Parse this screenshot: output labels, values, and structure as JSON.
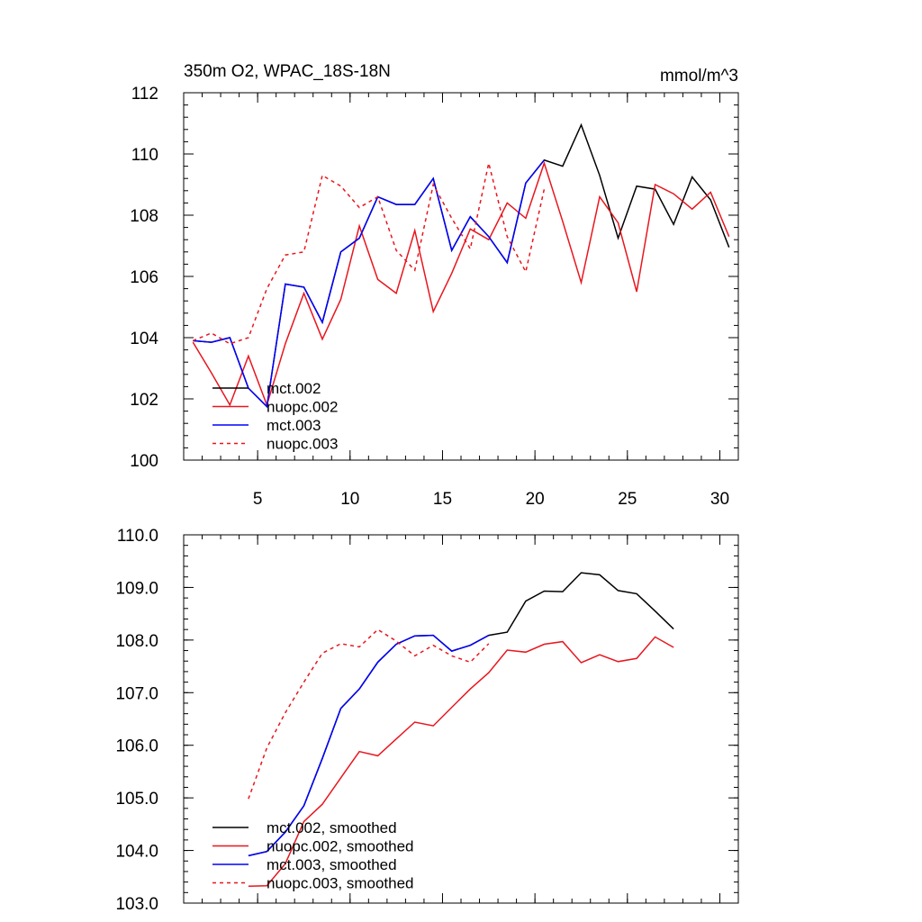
{
  "chart_data": [
    {
      "type": "line",
      "title": "350m O2, WPAC_18S-18N",
      "units": "mmol/m^3",
      "xlim": [
        1,
        31
      ],
      "ylim": [
        100,
        112
      ],
      "xticks": [
        5,
        10,
        15,
        20,
        25,
        30
      ],
      "yticks": [
        100,
        102,
        104,
        106,
        108,
        110,
        112
      ],
      "ytick_labels": [
        "100",
        "102",
        "104",
        "106",
        "108",
        "110",
        "112"
      ],
      "legend_placement": "bottom-left",
      "series": [
        {
          "name": "mct.002",
          "color": "#000000",
          "dash": "solid",
          "x": [
            1.5,
            2.5,
            3.5,
            4.5,
            5.5,
            6.5,
            7.5,
            8.5,
            9.5,
            10.5,
            11.5,
            12.5,
            13.5,
            14.5,
            15.5,
            16.5,
            17.5,
            18.5,
            19.5,
            20.5,
            21.5,
            22.5,
            23.5,
            24.5,
            25.5,
            26.5,
            27.5,
            28.5,
            29.5,
            30.5
          ],
          "y": [
            103.9,
            103.85,
            104.0,
            102.35,
            101.75,
            105.75,
            105.65,
            104.5,
            106.8,
            107.25,
            108.6,
            108.35,
            108.35,
            109.2,
            106.85,
            107.95,
            107.3,
            106.45,
            109.05,
            109.8,
            109.6,
            110.95,
            109.3,
            107.25,
            108.95,
            108.85,
            107.7,
            109.25,
            108.5,
            106.95
          ]
        },
        {
          "name": "nuopc.002",
          "color": "#e8161e",
          "dash": "solid",
          "x": [
            1.5,
            2.5,
            3.5,
            4.5,
            5.5,
            6.5,
            7.5,
            8.5,
            9.5,
            10.5,
            11.5,
            12.5,
            13.5,
            14.5,
            15.5,
            16.5,
            17.5,
            18.5,
            19.5,
            20.5,
            21.5,
            22.5,
            23.5,
            24.5,
            25.5,
            26.5,
            27.5,
            28.5,
            29.5,
            30.5
          ],
          "y": [
            103.85,
            102.85,
            101.8,
            103.4,
            101.8,
            103.8,
            105.45,
            103.95,
            105.25,
            107.65,
            105.9,
            105.45,
            107.5,
            104.85,
            106.1,
            107.55,
            107.2,
            108.4,
            107.9,
            109.7,
            107.8,
            105.8,
            108.6,
            107.75,
            105.5,
            109.0,
            108.7,
            108.2,
            108.75,
            107.3
          ]
        },
        {
          "name": "mct.003",
          "color": "#0000ff",
          "dash": "solid",
          "x": [
            1.5,
            2.5,
            3.5,
            4.5,
            5.5,
            6.5,
            7.5,
            8.5,
            9.5,
            10.5,
            11.5,
            12.5,
            13.5,
            14.5,
            15.5,
            16.5,
            17.5,
            18.5,
            19.5,
            20.5
          ],
          "y": [
            103.9,
            103.85,
            104.0,
            102.35,
            101.75,
            105.75,
            105.65,
            104.5,
            106.8,
            107.25,
            108.6,
            108.35,
            108.35,
            109.2,
            106.85,
            107.95,
            107.3,
            106.45,
            109.05,
            109.8
          ]
        },
        {
          "name": "nuopc.003",
          "color": "#e8161e",
          "dash": "dashed",
          "x": [
            1.5,
            2.5,
            3.5,
            4.5,
            5.5,
            6.5,
            7.5,
            8.5,
            9.5,
            10.5,
            11.5,
            12.5,
            13.5,
            14.5,
            15.5,
            16.5,
            17.5,
            18.5,
            19.5,
            20.5
          ],
          "y": [
            103.9,
            104.15,
            103.8,
            104.0,
            105.6,
            106.7,
            106.8,
            109.3,
            108.95,
            108.25,
            108.6,
            106.85,
            106.2,
            109.0,
            107.9,
            106.9,
            109.7,
            107.3,
            106.15,
            108.85
          ]
        }
      ]
    },
    {
      "type": "line",
      "title": "",
      "xlim": [
        1,
        31
      ],
      "ylim": [
        103,
        110
      ],
      "xticks": [
        5,
        10,
        15,
        20,
        25,
        30
      ],
      "yticks": [
        103,
        104,
        105,
        106,
        107,
        108,
        109,
        110
      ],
      "ytick_labels": [
        "103.0",
        "104.0",
        "105.0",
        "106.0",
        "107.0",
        "108.0",
        "109.0",
        "110.0"
      ],
      "legend_placement": "bottom-left",
      "series": [
        {
          "name": "mct.002, smoothed",
          "color": "#000000",
          "dash": "solid",
          "x": [
            4.5,
            5.5,
            6.5,
            7.5,
            8.5,
            9.5,
            10.5,
            11.5,
            12.5,
            13.5,
            14.5,
            15.5,
            16.5,
            17.5,
            18.5,
            19.5,
            20.5,
            21.5,
            22.5,
            23.5,
            24.5,
            25.5,
            26.5,
            27.5
          ],
          "y": [
            103.9,
            103.98,
            104.35,
            104.85,
            105.75,
            106.7,
            107.07,
            107.58,
            107.92,
            108.08,
            108.09,
            107.79,
            107.9,
            108.09,
            108.15,
            108.74,
            108.93,
            108.92,
            109.28,
            109.24,
            108.94,
            108.88,
            108.55,
            108.21
          ]
        },
        {
          "name": "nuopc.002, smoothed",
          "color": "#e8161e",
          "dash": "solid",
          "x": [
            4.5,
            5.5,
            6.5,
            7.5,
            8.5,
            9.5,
            10.5,
            11.5,
            12.5,
            13.5,
            14.5,
            15.5,
            16.5,
            17.5,
            18.5,
            19.5,
            20.5,
            21.5,
            22.5,
            23.5,
            24.5,
            25.5,
            26.5,
            27.5
          ],
          "y": [
            103.32,
            103.33,
            103.75,
            104.55,
            104.88,
            105.38,
            105.88,
            105.8,
            106.12,
            106.44,
            106.37,
            106.72,
            107.07,
            107.38,
            107.81,
            107.77,
            107.92,
            107.97,
            107.57,
            107.72,
            107.59,
            107.65,
            108.06,
            107.86
          ]
        },
        {
          "name": "mct.003, smoothed",
          "color": "#0000ff",
          "dash": "solid",
          "x": [
            4.5,
            5.5,
            6.5,
            7.5,
            8.5,
            9.5,
            10.5,
            11.5,
            12.5,
            13.5,
            14.5,
            15.5,
            16.5,
            17.5
          ],
          "y": [
            103.9,
            103.98,
            104.35,
            104.85,
            105.75,
            106.7,
            107.07,
            107.58,
            107.92,
            108.08,
            108.09,
            107.79,
            107.9,
            108.09
          ]
        },
        {
          "name": "nuopc.003, smoothed",
          "color": "#e8161e",
          "dash": "dashed",
          "x": [
            4.5,
            5.5,
            6.5,
            7.5,
            8.5,
            9.5,
            10.5,
            11.5,
            12.5,
            13.5,
            14.5,
            15.5,
            16.5,
            17.5
          ],
          "y": [
            104.98,
            105.95,
            106.62,
            107.2,
            107.75,
            107.93,
            107.87,
            108.2,
            107.98,
            107.7,
            107.9,
            107.7,
            107.58,
            107.93
          ]
        }
      ]
    }
  ]
}
